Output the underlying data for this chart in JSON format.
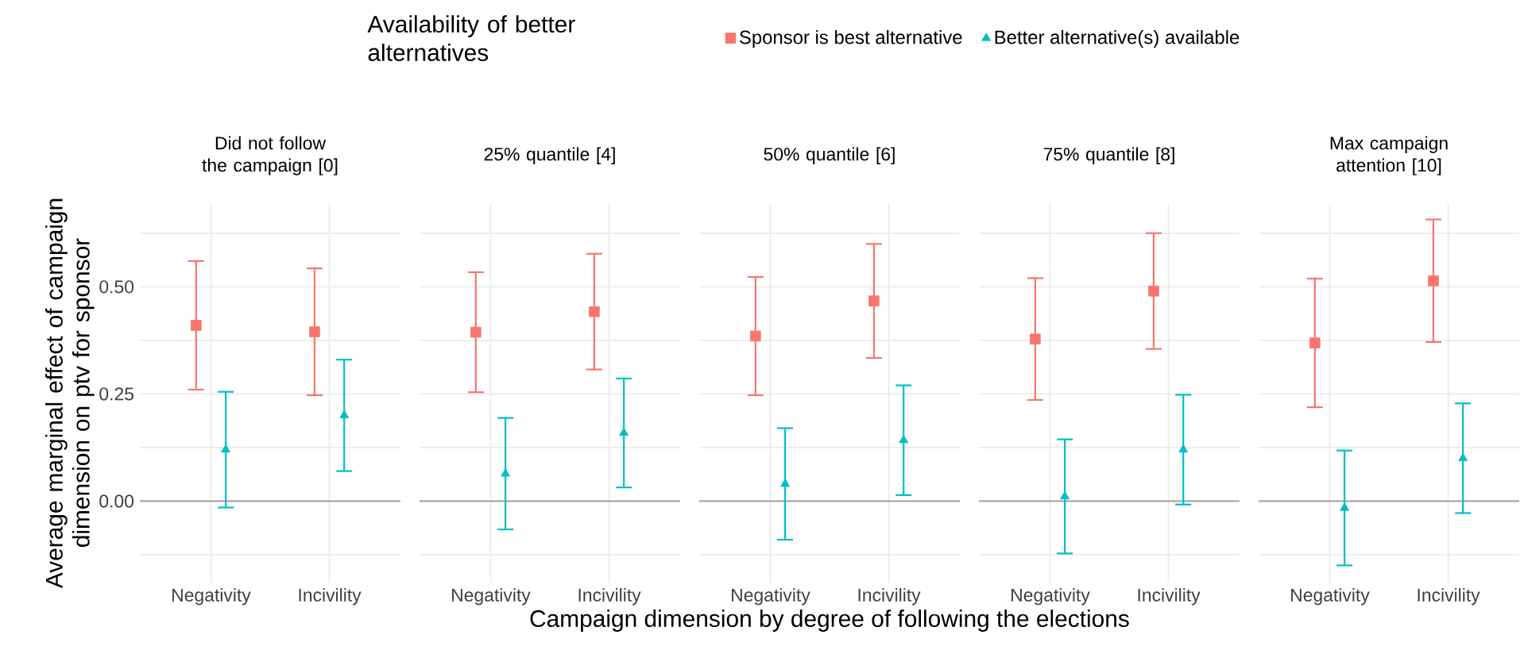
{
  "chart_data": [
    {
      "type": "scatter",
      "title": "Did not follow the campaign [0]",
      "ylabel": "Average marginal effect of campaign dimension on ptv for sponsor",
      "legend_title": "Availability of better alternatives",
      "legend": "top",
      "grid": true,
      "categories": [
        "Negativity",
        "Incivility"
      ],
      "ylim": [
        -0.19,
        0.695
      ],
      "yticks": [
        {
          "value": -0.125,
          "label": null
        },
        {
          "value": 0,
          "label": "0.00"
        },
        {
          "value": 0.125,
          "label": null
        },
        {
          "value": 0.25,
          "label": "0.25"
        },
        {
          "value": 0.375,
          "label": null
        },
        {
          "value": 0.5,
          "label": "0.50"
        },
        {
          "value": 0.625,
          "label": null
        }
      ],
      "ref_lines": [
        {
          "axis": "y",
          "value": 0,
          "color": "#aaaaaa"
        }
      ],
      "series": [
        {
          "name": "Sponsor is best alternative",
          "color": "#f8766d",
          "marker": "square",
          "values": [
            0.41,
            0.395
          ],
          "errors": [
            0.15,
            0.148
          ]
        },
        {
          "name": "Better alternative(s) available",
          "color": "#00bfc4",
          "marker": "triangle",
          "values": [
            0.12,
            0.2
          ],
          "errors": [
            0.135,
            0.13
          ]
        }
      ]
    },
    {
      "type": "scatter",
      "title": "25% quantile [4]",
      "tick_labels": "x",
      "grid": true,
      "categories": [
        "Negativity",
        "Incivility"
      ],
      "ylim": [
        -0.19,
        0.695
      ],
      "yticks": [
        -0.125,
        0,
        0.125,
        0.25,
        0.375,
        0.5,
        0.625
      ],
      "ref_lines": [
        {
          "axis": "y",
          "value": 0,
          "color": "#aaaaaa"
        }
      ],
      "series": [
        {
          "color": "#f8766d",
          "marker": "square",
          "values": [
            0.394,
            0.442
          ],
          "errors": [
            0.14,
            0.135
          ]
        },
        {
          "color": "#00bfc4",
          "marker": "triangle",
          "values": [
            0.064,
            0.159
          ],
          "errors": [
            0.13,
            0.127
          ]
        }
      ]
    },
    {
      "type": "scatter",
      "title": "50% quantile [6]",
      "xlabel": "Campaign dimension by degree of following the elections",
      "tick_labels": "x",
      "grid": true,
      "categories": [
        "Negativity",
        "Incivility"
      ],
      "ylim": [
        -0.19,
        0.695
      ],
      "yticks": [
        -0.125,
        0,
        0.125,
        0.25,
        0.375,
        0.5,
        0.625
      ],
      "ref_lines": [
        {
          "axis": "y",
          "value": 0,
          "color": "#aaaaaa"
        }
      ],
      "series": [
        {
          "color": "#f8766d",
          "marker": "square",
          "values": [
            0.385,
            0.467
          ],
          "errors": [
            0.138,
            0.133
          ]
        },
        {
          "color": "#00bfc4",
          "marker": "triangle",
          "values": [
            0.04,
            0.142
          ],
          "errors": [
            0.13,
            0.128
          ]
        }
      ]
    },
    {
      "type": "scatter",
      "title": "75% quantile [8]",
      "tick_labels": "x",
      "grid": true,
      "categories": [
        "Negativity",
        "Incivility"
      ],
      "ylim": [
        -0.19,
        0.695
      ],
      "yticks": [
        -0.125,
        0,
        0.125,
        0.25,
        0.375,
        0.5,
        0.625
      ],
      "ref_lines": [
        {
          "axis": "y",
          "value": 0,
          "color": "#aaaaaa"
        }
      ],
      "series": [
        {
          "color": "#f8766d",
          "marker": "square",
          "values": [
            0.378,
            0.49
          ],
          "errors": [
            0.142,
            0.135
          ]
        },
        {
          "color": "#00bfc4",
          "marker": "triangle",
          "values": [
            0.011,
            0.12
          ],
          "errors": [
            0.133,
            0.128
          ]
        }
      ]
    },
    {
      "type": "scatter",
      "title": "Max campaign attention [10]",
      "tick_labels": "x",
      "grid": true,
      "categories": [
        "Negativity",
        "Incivility"
      ],
      "ylim": [
        -0.19,
        0.695
      ],
      "yticks": [
        -0.125,
        0,
        0.125,
        0.25,
        0.375,
        0.5,
        0.625
      ],
      "ref_lines": [
        {
          "axis": "y",
          "value": 0,
          "color": "#aaaaaa"
        }
      ],
      "series": [
        {
          "color": "#f8766d",
          "marker": "square",
          "values": [
            0.369,
            0.514
          ],
          "errors": [
            0.15,
            0.143
          ]
        },
        {
          "color": "#00bfc4",
          "marker": "triangle",
          "values": [
            -0.016,
            0.1
          ],
          "errors": [
            0.134,
            0.128
          ]
        }
      ]
    }
  ]
}
